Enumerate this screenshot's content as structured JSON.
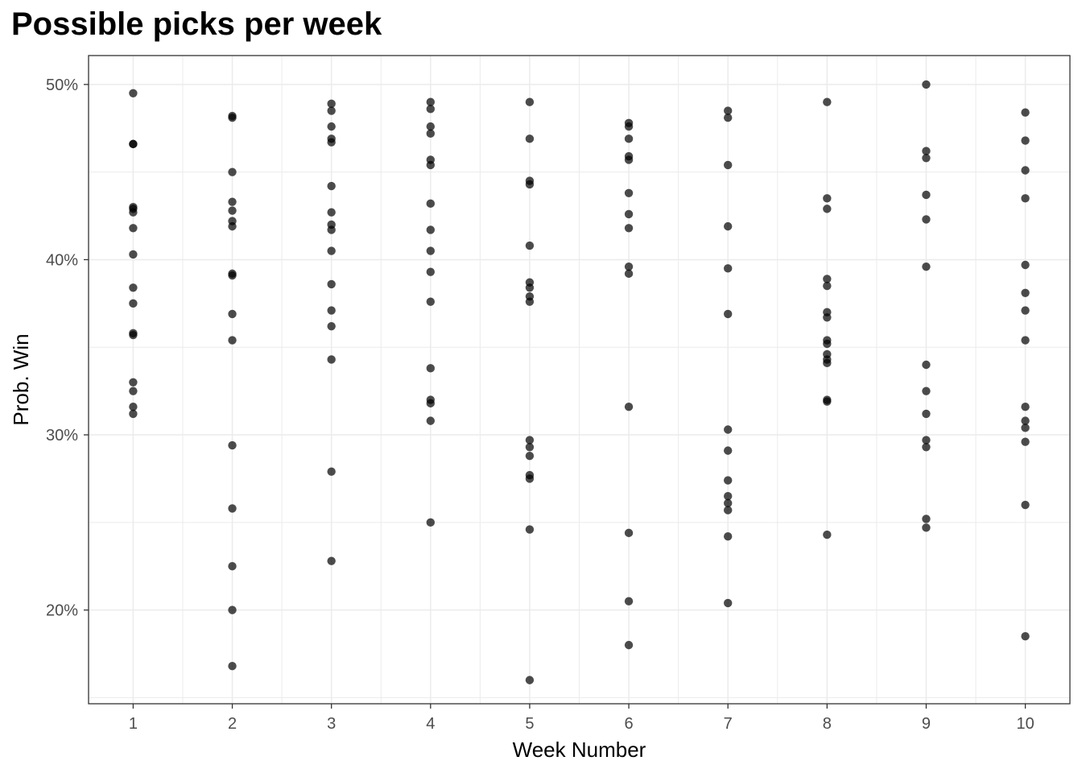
{
  "chart_data": {
    "type": "scatter",
    "title": "Possible picks per week",
    "xlabel": "Week Number",
    "ylabel": "Prob. Win",
    "x_ticks": [
      "1",
      "2",
      "3",
      "4",
      "5",
      "6",
      "7",
      "8",
      "9",
      "10"
    ],
    "y_ticks": [
      {
        "value": 0.2,
        "label": "20%"
      },
      {
        "value": 0.3,
        "label": "30%"
      },
      {
        "value": 0.4,
        "label": "40%"
      },
      {
        "value": 0.5,
        "label": "50%"
      }
    ],
    "xlim": [
      0.55,
      10.45
    ],
    "ylim": [
      0.1465,
      0.5165
    ],
    "grid": true,
    "point_color": "#000000",
    "point_opacity": 0.7,
    "points": [
      {
        "week": 1,
        "values": [
          0.495,
          0.466,
          0.466,
          0.43,
          0.429,
          0.427,
          0.418,
          0.403,
          0.384,
          0.375,
          0.358,
          0.357,
          0.33,
          0.325,
          0.316,
          0.312
        ]
      },
      {
        "week": 2,
        "values": [
          0.482,
          0.481,
          0.45,
          0.433,
          0.428,
          0.422,
          0.419,
          0.392,
          0.391,
          0.369,
          0.354,
          0.294,
          0.258,
          0.225,
          0.2,
          0.168
        ]
      },
      {
        "week": 3,
        "values": [
          0.489,
          0.485,
          0.476,
          0.469,
          0.467,
          0.442,
          0.427,
          0.42,
          0.417,
          0.405,
          0.386,
          0.371,
          0.362,
          0.343,
          0.279,
          0.228
        ]
      },
      {
        "week": 4,
        "values": [
          0.49,
          0.486,
          0.476,
          0.472,
          0.457,
          0.454,
          0.432,
          0.417,
          0.405,
          0.393,
          0.376,
          0.338,
          0.32,
          0.318,
          0.308,
          0.25
        ]
      },
      {
        "week": 5,
        "values": [
          0.49,
          0.469,
          0.445,
          0.443,
          0.408,
          0.387,
          0.384,
          0.379,
          0.376,
          0.297,
          0.293,
          0.288,
          0.277,
          0.275,
          0.246,
          0.16
        ]
      },
      {
        "week": 6,
        "values": [
          0.478,
          0.476,
          0.469,
          0.459,
          0.457,
          0.438,
          0.426,
          0.418,
          0.396,
          0.392,
          0.316,
          0.244,
          0.205,
          0.18
        ]
      },
      {
        "week": 7,
        "values": [
          0.485,
          0.481,
          0.454,
          0.419,
          0.395,
          0.369,
          0.303,
          0.291,
          0.274,
          0.265,
          0.261,
          0.257,
          0.242,
          0.204
        ]
      },
      {
        "week": 8,
        "values": [
          0.49,
          0.435,
          0.429,
          0.389,
          0.385,
          0.37,
          0.367,
          0.354,
          0.352,
          0.346,
          0.343,
          0.341,
          0.32,
          0.319,
          0.243
        ]
      },
      {
        "week": 9,
        "values": [
          0.5,
          0.462,
          0.458,
          0.437,
          0.423,
          0.396,
          0.34,
          0.325,
          0.312,
          0.297,
          0.293,
          0.252,
          0.247
        ]
      },
      {
        "week": 10,
        "values": [
          0.484,
          0.468,
          0.451,
          0.435,
          0.397,
          0.381,
          0.371,
          0.354,
          0.316,
          0.308,
          0.304,
          0.296,
          0.26,
          0.185
        ]
      }
    ]
  }
}
